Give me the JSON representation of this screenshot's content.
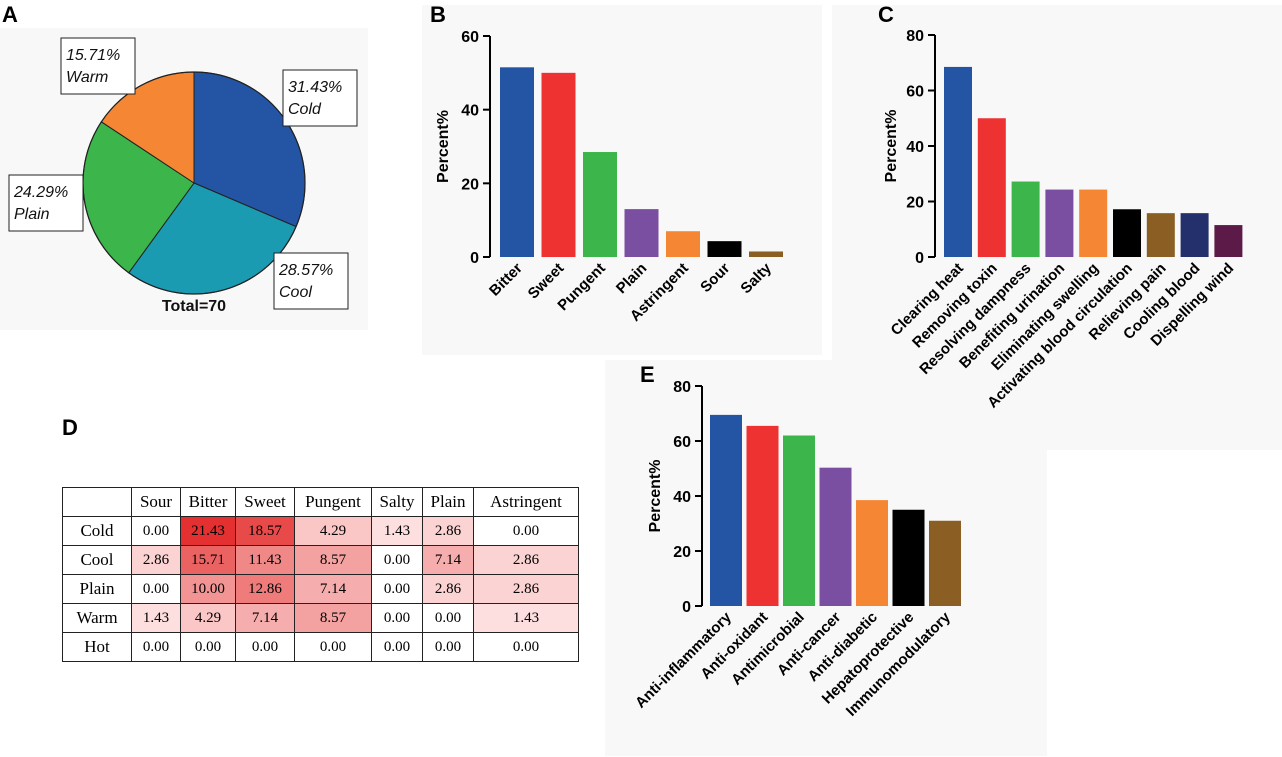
{
  "panels": {
    "a": "A",
    "b": "B",
    "c": "C",
    "d": "D",
    "e": "E"
  },
  "chart_data": [
    {
      "id": "A",
      "type": "pie",
      "title": "Total=70",
      "slices": [
        {
          "label": "Cold",
          "value": 31.43,
          "display": "31.43%",
          "color": "#2454a4"
        },
        {
          "label": "Cool",
          "value": 28.57,
          "display": "28.57%",
          "color": "#1a9bb2"
        },
        {
          "label": "Plain",
          "value": 24.29,
          "display": "24.29%",
          "color": "#3cb54a"
        },
        {
          "label": "Warm",
          "value": 15.71,
          "display": "15.71%",
          "color": "#f58634"
        }
      ]
    },
    {
      "id": "B",
      "type": "bar",
      "ylabel": "Percent%",
      "ylim": [
        0,
        60
      ],
      "yticks": [
        0,
        20,
        40,
        60
      ],
      "categories": [
        "Bitter",
        "Sweet",
        "Pungent",
        "Plain",
        "Astringent",
        "Sour",
        "Salty"
      ],
      "values": [
        51.5,
        50,
        28.5,
        13,
        7,
        4.3,
        1.5
      ],
      "colors": [
        "#2454a4",
        "#ee3131",
        "#3cb54a",
        "#7a4ea1",
        "#f58634",
        "#000000",
        "#8b5f24"
      ]
    },
    {
      "id": "C",
      "type": "bar",
      "ylabel": "Percent%",
      "ylim": [
        0,
        80
      ],
      "yticks": [
        0,
        20,
        40,
        60,
        80
      ],
      "categories": [
        "Clearing heat",
        "Removing toxin",
        "Resolving dampness",
        "Benefiting urination",
        "Eliminating swelling",
        "Activating blood circulation",
        "Relieving pain",
        "Cooling blood",
        "Dispelling wind"
      ],
      "values": [
        68.5,
        50,
        27.2,
        24.3,
        24.3,
        17.2,
        15.8,
        15.8,
        11.5
      ],
      "colors": [
        "#2454a4",
        "#ee3131",
        "#3cb54a",
        "#7a4ea1",
        "#f58634",
        "#000000",
        "#8b5f24",
        "#24306c",
        "#5b1a48"
      ]
    },
    {
      "id": "D",
      "type": "table",
      "columns": [
        "",
        "Sour",
        "Bitter",
        "Sweet",
        "Pungent",
        "Salty",
        "Plain",
        "Astringent"
      ],
      "rows": [
        {
          "label": "Cold",
          "values": [
            "0.00",
            "21.43",
            "18.57",
            "4.29",
            "1.43",
            "2.86",
            "0.00"
          ]
        },
        {
          "label": "Cool",
          "values": [
            "2.86",
            "15.71",
            "11.43",
            "8.57",
            "0.00",
            "7.14",
            "2.86"
          ]
        },
        {
          "label": "Plain",
          "values": [
            "0.00",
            "10.00",
            "12.86",
            "7.14",
            "0.00",
            "2.86",
            "2.86"
          ]
        },
        {
          "label": "Warm",
          "values": [
            "1.43",
            "4.29",
            "7.14",
            "8.57",
            "0.00",
            "0.00",
            "1.43"
          ]
        },
        {
          "label": "Hot",
          "values": [
            "0.00",
            "0.00",
            "0.00",
            "0.00",
            "0.00",
            "0.00",
            "0.00"
          ]
        }
      ]
    },
    {
      "id": "E",
      "type": "bar",
      "ylabel": "Percent%",
      "ylim": [
        0,
        80
      ],
      "yticks": [
        0,
        20,
        40,
        60,
        80
      ],
      "categories": [
        "Anti-inflammatory",
        "Anti-oxidant",
        "Antimicrobial",
        "Anti-cancer",
        "Anti-diabetic",
        "Hepatoprotective",
        "Immunomodulatory"
      ],
      "values": [
        69.5,
        65.5,
        62,
        50.3,
        38.5,
        35,
        31
      ],
      "colors": [
        "#2454a4",
        "#ee3131",
        "#3cb54a",
        "#7a4ea1",
        "#f58634",
        "#000000",
        "#8b5f24"
      ]
    }
  ]
}
